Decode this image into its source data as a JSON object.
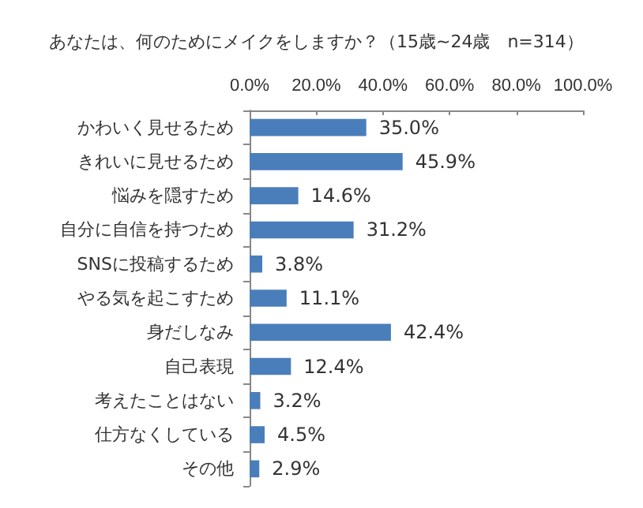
{
  "chart_data": {
    "type": "bar",
    "orientation": "horizontal",
    "title": "あなたは、何のためにメイクをしますか？（15歳~24歳　n=314）",
    "categories": [
      "かわいく見せるため",
      "きれいに見せるため",
      "悩みを隠すため",
      "自分に自信を持つため",
      "SNSに投稿するため",
      "やる気を起こすため",
      "身だしなみ",
      "自己表現",
      "考えたことはない",
      "仕方なくしている",
      "その他"
    ],
    "values": [
      35.0,
      45.9,
      14.6,
      31.2,
      3.8,
      11.1,
      42.4,
      12.4,
      3.2,
      4.5,
      2.9
    ],
    "value_labels": [
      "35.0%",
      "45.9%",
      "14.6%",
      "31.2%",
      "3.8%",
      "11.1%",
      "42.4%",
      "12.4%",
      "3.2%",
      "4.5%",
      "2.9%"
    ],
    "color": "#4a7ebb",
    "xlim": [
      0,
      100
    ],
    "xticks": [
      {
        "value": 0,
        "label": "0.0%"
      },
      {
        "value": 20,
        "label": "20.0%"
      },
      {
        "value": 40,
        "label": "40.0%"
      },
      {
        "value": 60,
        "label": "60.0%"
      },
      {
        "value": 80,
        "label": "80.0%"
      },
      {
        "value": 100,
        "label": "100.0%"
      }
    ],
    "grid": false
  }
}
